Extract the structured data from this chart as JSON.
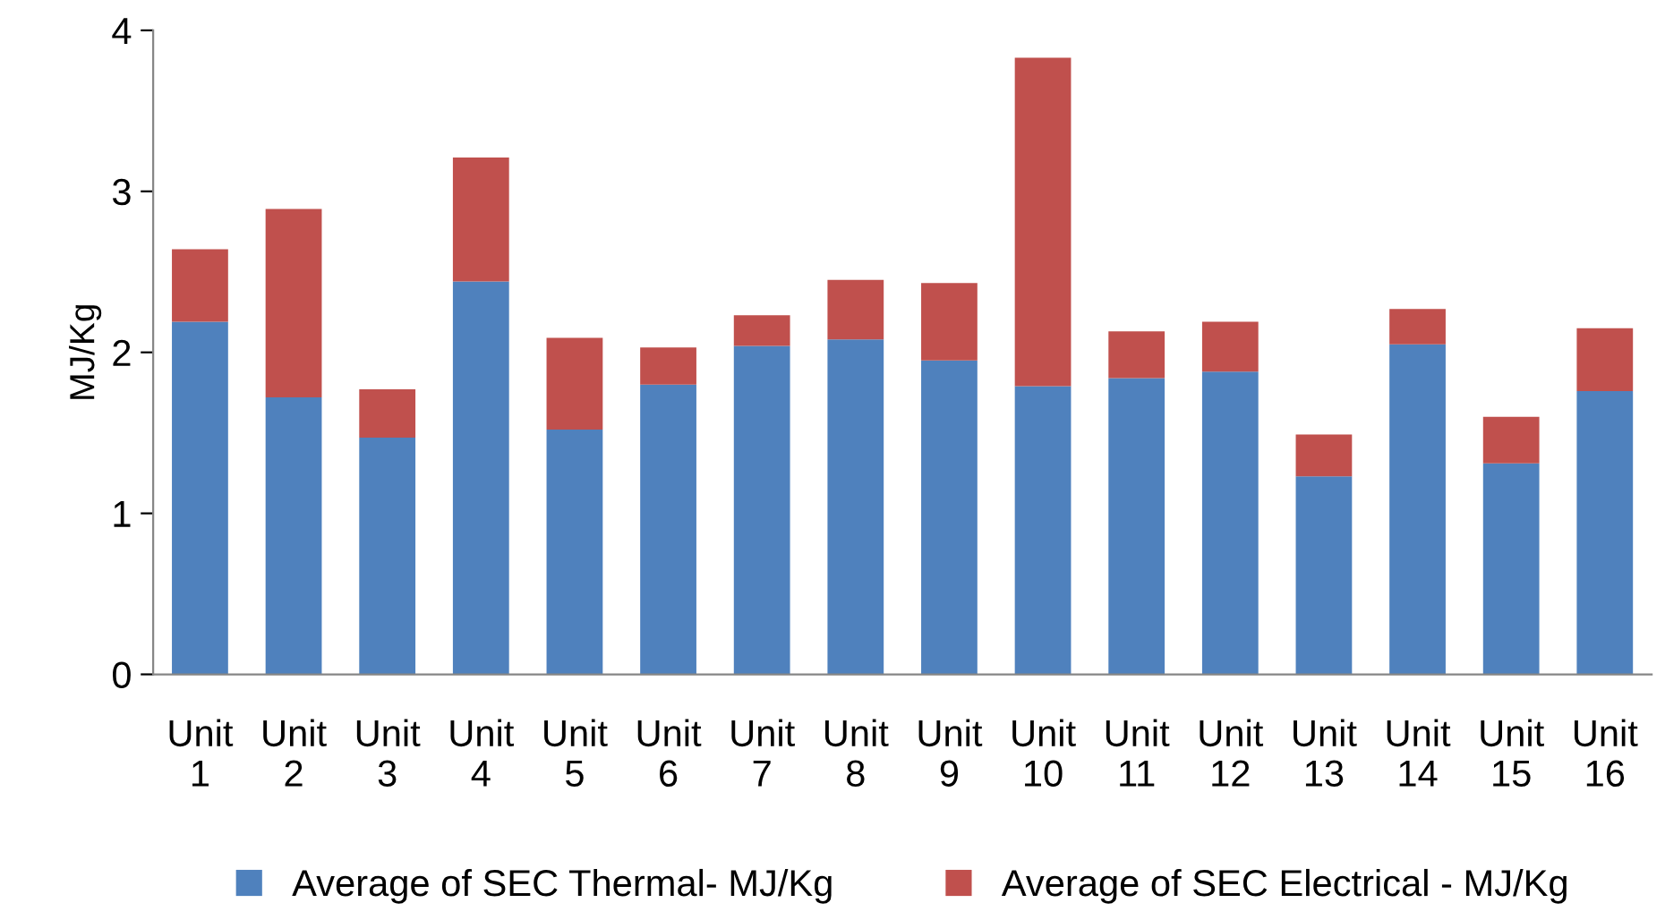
{
  "chart_data": {
    "type": "bar",
    "stacked": true,
    "ylabel": "MJ/Kg",
    "categories": [
      "Unit 1",
      "Unit 2",
      "Unit 3",
      "Unit 4",
      "Unit 5",
      "Unit 6",
      "Unit 7",
      "Unit 8",
      "Unit 9",
      "Unit 10",
      "Unit 11",
      "Unit 12",
      "Unit 13",
      "Unit 14",
      "Unit 15",
      "Unit 16"
    ],
    "series": [
      {
        "name": "Average of SEC Thermal- MJ/Kg",
        "color": "#4f81bd",
        "values": [
          2.19,
          1.72,
          1.47,
          2.44,
          1.52,
          1.8,
          2.04,
          2.08,
          1.95,
          1.79,
          1.84,
          1.88,
          1.23,
          2.05,
          1.31,
          1.76
        ]
      },
      {
        "name": "Average of SEC Electrical - MJ/Kg",
        "color": "#c0504d",
        "values": [
          0.45,
          1.17,
          0.3,
          0.77,
          0.57,
          0.23,
          0.19,
          0.37,
          0.48,
          2.04,
          0.29,
          0.31,
          0.26,
          0.22,
          0.29,
          0.39
        ]
      }
    ],
    "ylim": [
      0,
      4
    ],
    "yticks": [
      0,
      1,
      2,
      3,
      4
    ],
    "grid": false,
    "legend": "bottom"
  }
}
